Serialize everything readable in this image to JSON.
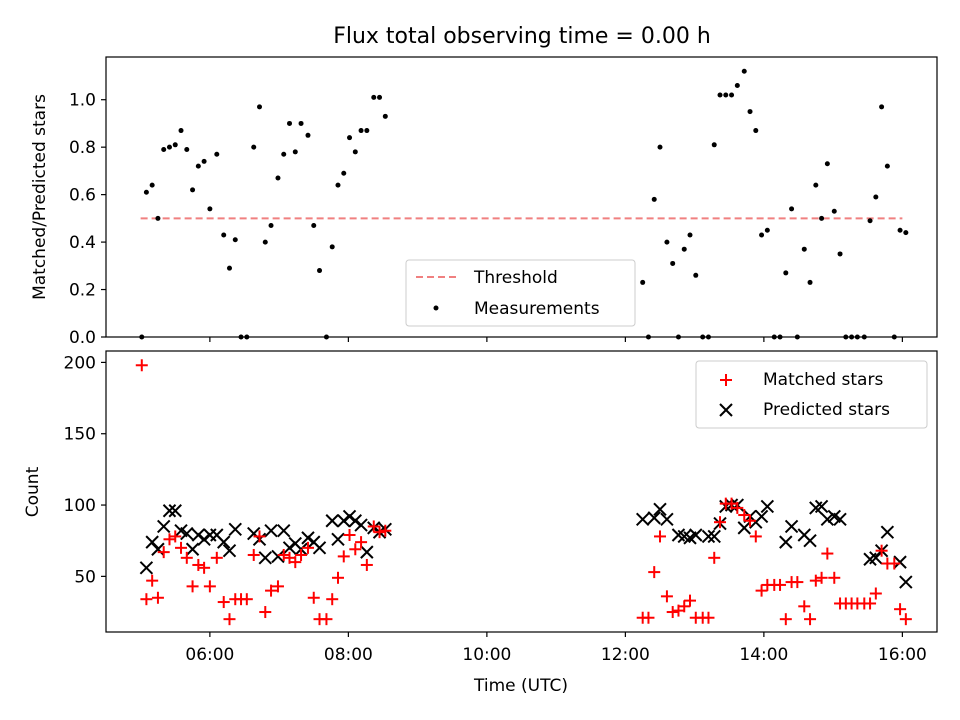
{
  "figure": {
    "title": "Flux total observing time = 0.00 h",
    "xlabel": "Time (UTC)"
  },
  "chart_data": [
    {
      "type": "scatter",
      "ylabel": "Matched/Predicted stars",
      "xlim": [
        "04:30",
        "16:30"
      ],
      "ylim": [
        0,
        1.18
      ],
      "yticks": [
        0.0,
        0.2,
        0.4,
        0.6,
        0.8,
        1.0
      ],
      "ytick_labels": [
        "0.0",
        "0.2",
        "0.4",
        "0.6",
        "0.8",
        "1.0"
      ],
      "xticks": [
        "06:00",
        "08:00",
        "10:00",
        "12:00",
        "14:00",
        "16:00"
      ],
      "legend_position": "lower-center",
      "threshold": {
        "name": "Threshold",
        "y": 0.5,
        "x_range": [
          "05:00",
          "16:00"
        ],
        "color": "#f08080"
      },
      "series": [
        {
          "name": "Measurements",
          "color": "#000000",
          "points": [
            [
              "05:01",
              0.0
            ],
            [
              "05:05",
              0.61
            ],
            [
              "05:10",
              0.64
            ],
            [
              "05:15",
              0.5
            ],
            [
              "05:20",
              0.79
            ],
            [
              "05:25",
              0.8
            ],
            [
              "05:30",
              0.81
            ],
            [
              "05:35",
              0.87
            ],
            [
              "05:40",
              0.79
            ],
            [
              "05:45",
              0.62
            ],
            [
              "05:50",
              0.72
            ],
            [
              "05:55",
              0.74
            ],
            [
              "06:00",
              0.54
            ],
            [
              "06:06",
              0.77
            ],
            [
              "06:12",
              0.43
            ],
            [
              "06:17",
              0.29
            ],
            [
              "06:22",
              0.41
            ],
            [
              "06:27",
              0.0
            ],
            [
              "06:32",
              0.0
            ],
            [
              "06:38",
              0.8
            ],
            [
              "06:43",
              0.97
            ],
            [
              "06:48",
              0.4
            ],
            [
              "06:53",
              0.47
            ],
            [
              "06:59",
              0.67
            ],
            [
              "07:04",
              0.77
            ],
            [
              "07:09",
              0.9
            ],
            [
              "07:14",
              0.78
            ],
            [
              "07:19",
              0.9
            ],
            [
              "07:25",
              0.85
            ],
            [
              "07:30",
              0.47
            ],
            [
              "07:35",
              0.28
            ],
            [
              "07:41",
              0.0
            ],
            [
              "07:46",
              0.38
            ],
            [
              "07:51",
              0.64
            ],
            [
              "07:56",
              0.69
            ],
            [
              "08:01",
              0.84
            ],
            [
              "08:06",
              0.78
            ],
            [
              "08:11",
              0.87
            ],
            [
              "08:16",
              0.87
            ],
            [
              "08:22",
              1.01
            ],
            [
              "08:27",
              1.01
            ],
            [
              "08:32",
              0.93
            ],
            [
              "12:15",
              0.23
            ],
            [
              "12:20",
              0.0
            ],
            [
              "12:25",
              0.58
            ],
            [
              "12:30",
              0.8
            ],
            [
              "12:36",
              0.4
            ],
            [
              "12:41",
              0.31
            ],
            [
              "12:46",
              0.0
            ],
            [
              "12:51",
              0.37
            ],
            [
              "12:56",
              0.43
            ],
            [
              "13:01",
              0.26
            ],
            [
              "13:07",
              0.0
            ],
            [
              "13:12",
              0.0
            ],
            [
              "13:17",
              0.81
            ],
            [
              "13:22",
              1.02
            ],
            [
              "13:27",
              1.02
            ],
            [
              "13:32",
              1.02
            ],
            [
              "13:37",
              1.06
            ],
            [
              "13:43",
              1.12
            ],
            [
              "13:48",
              0.95
            ],
            [
              "13:53",
              0.87
            ],
            [
              "13:58",
              0.43
            ],
            [
              "14:03",
              0.45
            ],
            [
              "14:09",
              0.0
            ],
            [
              "14:14",
              0.0
            ],
            [
              "14:19",
              0.27
            ],
            [
              "14:24",
              0.54
            ],
            [
              "14:29",
              0.0
            ],
            [
              "14:35",
              0.37
            ],
            [
              "14:40",
              0.23
            ],
            [
              "14:45",
              0.64
            ],
            [
              "14:50",
              0.5
            ],
            [
              "14:55",
              0.73
            ],
            [
              "15:01",
              0.53
            ],
            [
              "15:06",
              0.35
            ],
            [
              "15:11",
              0.0
            ],
            [
              "15:16",
              0.0
            ],
            [
              "15:21",
              0.0
            ],
            [
              "15:27",
              0.0
            ],
            [
              "15:32",
              0.49
            ],
            [
              "15:37",
              0.59
            ],
            [
              "15:42",
              0.97
            ],
            [
              "15:47",
              0.72
            ],
            [
              "15:53",
              0.0
            ],
            [
              "15:58",
              0.45
            ],
            [
              "16:03",
              0.44
            ]
          ]
        }
      ]
    },
    {
      "type": "scatter",
      "ylabel": "Count",
      "xlabel": "Time (UTC)",
      "xlim": [
        "04:30",
        "16:30"
      ],
      "ylim": [
        11,
        208
      ],
      "yticks": [
        50,
        100,
        150,
        200
      ],
      "ytick_labels": [
        "50",
        "100",
        "150",
        "200"
      ],
      "xticks": [
        "06:00",
        "08:00",
        "10:00",
        "12:00",
        "14:00",
        "16:00"
      ],
      "xtick_labels": [
        "06:00",
        "08:00",
        "10:00",
        "12:00",
        "14:00",
        "16:00"
      ],
      "legend_position": "upper-right",
      "series": [
        {
          "name": "Matched stars",
          "marker": "+",
          "color": "#ff0000",
          "points": [
            [
              "05:01",
              198
            ],
            [
              "05:05",
              34
            ],
            [
              "05:10",
              47
            ],
            [
              "05:15",
              35
            ],
            [
              "05:20",
              67
            ],
            [
              "05:25",
              76
            ],
            [
              "05:30",
              78
            ],
            [
              "05:35",
              70
            ],
            [
              "05:40",
              63
            ],
            [
              "05:45",
              43
            ],
            [
              "05:50",
              58
            ],
            [
              "05:55",
              56
            ],
            [
              "06:00",
              43
            ],
            [
              "06:06",
              63
            ],
            [
              "06:12",
              32
            ],
            [
              "06:17",
              20
            ],
            [
              "06:22",
              34
            ],
            [
              "06:27",
              34
            ],
            [
              "06:32",
              34
            ],
            [
              "06:38",
              65
            ],
            [
              "06:43",
              78
            ],
            [
              "06:48",
              25
            ],
            [
              "06:53",
              40
            ],
            [
              "06:59",
              43
            ],
            [
              "07:04",
              65
            ],
            [
              "07:09",
              63
            ],
            [
              "07:14",
              60
            ],
            [
              "07:19",
              65
            ],
            [
              "07:25",
              70
            ],
            [
              "07:30",
              35
            ],
            [
              "07:35",
              20
            ],
            [
              "07:41",
              20
            ],
            [
              "07:46",
              34
            ],
            [
              "07:51",
              49
            ],
            [
              "07:56",
              64
            ],
            [
              "08:01",
              79
            ],
            [
              "08:06",
              69
            ],
            [
              "08:11",
              74
            ],
            [
              "08:16",
              58
            ],
            [
              "08:22",
              85
            ],
            [
              "08:27",
              81
            ],
            [
              "08:32",
              82
            ],
            [
              "12:15",
              21
            ],
            [
              "12:20",
              21
            ],
            [
              "12:25",
              53
            ],
            [
              "12:30",
              78
            ],
            [
              "12:36",
              36
            ],
            [
              "12:41",
              25
            ],
            [
              "12:46",
              26
            ],
            [
              "12:51",
              29
            ],
            [
              "12:56",
              33
            ],
            [
              "13:01",
              21
            ],
            [
              "13:07",
              21
            ],
            [
              "13:12",
              21
            ],
            [
              "13:17",
              63
            ],
            [
              "13:22",
              88
            ],
            [
              "13:27",
              101
            ],
            [
              "13:32",
              101
            ],
            [
              "13:37",
              98
            ],
            [
              "13:43",
              93
            ],
            [
              "13:48",
              89
            ],
            [
              "13:53",
              78
            ],
            [
              "13:58",
              40
            ],
            [
              "14:03",
              44
            ],
            [
              "14:09",
              44
            ],
            [
              "14:14",
              44
            ],
            [
              "14:19",
              20
            ],
            [
              "14:24",
              46
            ],
            [
              "14:29",
              46
            ],
            [
              "14:35",
              29
            ],
            [
              "14:40",
              20
            ],
            [
              "14:45",
              47
            ],
            [
              "14:50",
              49
            ],
            [
              "14:55",
              66
            ],
            [
              "15:01",
              49
            ],
            [
              "15:06",
              31
            ],
            [
              "15:11",
              31
            ],
            [
              "15:16",
              31
            ],
            [
              "15:21",
              31
            ],
            [
              "15:27",
              31
            ],
            [
              "15:32",
              31
            ],
            [
              "15:37",
              38
            ],
            [
              "15:42",
              68
            ],
            [
              "15:47",
              59
            ],
            [
              "15:53",
              59
            ],
            [
              "15:58",
              27
            ],
            [
              "16:03",
              20
            ]
          ]
        },
        {
          "name": "Predicted stars",
          "marker": "x",
          "color": "#000000",
          "points": [
            [
              "05:05",
              56
            ],
            [
              "05:10",
              74
            ],
            [
              "05:15",
              69
            ],
            [
              "05:20",
              85
            ],
            [
              "05:25",
              96
            ],
            [
              "05:30",
              96
            ],
            [
              "05:35",
              82
            ],
            [
              "05:40",
              80
            ],
            [
              "05:45",
              69
            ],
            [
              "05:50",
              79
            ],
            [
              "05:55",
              76
            ],
            [
              "06:00",
              79
            ],
            [
              "06:06",
              79
            ],
            [
              "06:12",
              74
            ],
            [
              "06:17",
              68
            ],
            [
              "06:22",
              83
            ],
            [
              "06:38",
              80
            ],
            [
              "06:43",
              76
            ],
            [
              "06:48",
              63
            ],
            [
              "06:53",
              82
            ],
            [
              "06:59",
              64
            ],
            [
              "07:04",
              82
            ],
            [
              "07:09",
              70
            ],
            [
              "07:14",
              73
            ],
            [
              "07:19",
              69
            ],
            [
              "07:25",
              77
            ],
            [
              "07:30",
              74
            ],
            [
              "07:35",
              70
            ],
            [
              "07:46",
              89
            ],
            [
              "07:51",
              76
            ],
            [
              "07:56",
              89
            ],
            [
              "08:01",
              92
            ],
            [
              "08:06",
              89
            ],
            [
              "08:11",
              86
            ],
            [
              "08:16",
              67
            ],
            [
              "08:22",
              84
            ],
            [
              "08:27",
              81
            ],
            [
              "08:32",
              83
            ],
            [
              "12:15",
              90
            ],
            [
              "12:25",
              91
            ],
            [
              "12:30",
              97
            ],
            [
              "12:36",
              90
            ],
            [
              "12:46",
              79
            ],
            [
              "12:51",
              78
            ],
            [
              "12:56",
              77
            ],
            [
              "13:01",
              79
            ],
            [
              "13:12",
              78
            ],
            [
              "13:17",
              78
            ],
            [
              "13:22",
              87
            ],
            [
              "13:27",
              99
            ],
            [
              "13:32",
              100
            ],
            [
              "13:37",
              100
            ],
            [
              "13:43",
              84
            ],
            [
              "13:48",
              92
            ],
            [
              "13:53",
              88
            ],
            [
              "13:58",
              92
            ],
            [
              "14:03",
              99
            ],
            [
              "14:19",
              74
            ],
            [
              "14:24",
              85
            ],
            [
              "14:35",
              79
            ],
            [
              "14:40",
              75
            ],
            [
              "14:45",
              98
            ],
            [
              "14:50",
              99
            ],
            [
              "14:55",
              90
            ],
            [
              "15:01",
              92
            ],
            [
              "15:06",
              90
            ],
            [
              "15:32",
              62
            ],
            [
              "15:37",
              63
            ],
            [
              "15:42",
              68
            ],
            [
              "15:47",
              81
            ],
            [
              "15:58",
              60
            ],
            [
              "16:03",
              46
            ]
          ]
        }
      ]
    }
  ]
}
